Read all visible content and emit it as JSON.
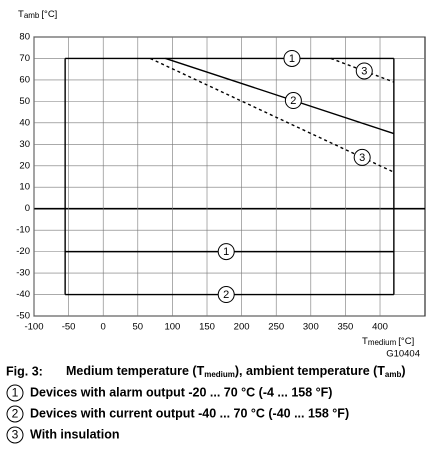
{
  "chart_data": {
    "type": "line",
    "ylabel": {
      "main": "T",
      "sub": "amb",
      "unit": "[°C]"
    },
    "xlabel": {
      "main": "T",
      "sub": "medium",
      "unit": "[°C]"
    },
    "code": "G10404",
    "xlim": [
      -100,
      465
    ],
    "ylim": [
      -50,
      80
    ],
    "xticks": [
      -100,
      -50,
      0,
      50,
      100,
      150,
      200,
      250,
      300,
      350,
      400
    ],
    "yticks": [
      -50,
      -40,
      -30,
      -20,
      -10,
      0,
      10,
      20,
      30,
      40,
      50,
      60,
      70,
      80
    ],
    "grid": true,
    "series": [
      {
        "label": "1",
        "color": "#000000",
        "dash": false,
        "x": [
          -55,
          420
        ],
        "values": [
          70,
          70
        ]
      },
      {
        "label": "2",
        "color": "#000000",
        "dash": false,
        "x": [
          90,
          420
        ],
        "values": [
          70,
          35
        ]
      },
      {
        "label": "3",
        "color": "#000000",
        "dash": true,
        "x": [
          329,
          420
        ],
        "values": [
          70,
          59
        ]
      },
      {
        "label": "3",
        "color": "#000000",
        "dash": true,
        "x": [
          68,
          420
        ],
        "values": [
          70,
          17
        ]
      },
      {
        "label": "1",
        "color": "#000000",
        "dash": false,
        "x": [
          -55,
          420
        ],
        "values": [
          -20,
          -20
        ]
      },
      {
        "label": "2",
        "color": "#000000",
        "dash": false,
        "x": [
          -55,
          420
        ],
        "values": [
          -40,
          -40
        ]
      },
      {
        "color": "#000000",
        "dash": false,
        "x": [
          -55,
          -55
        ],
        "values": [
          -40,
          70
        ]
      },
      {
        "color": "#000000",
        "dash": false,
        "x": [
          420,
          420
        ],
        "values": [
          -40,
          70
        ]
      }
    ],
    "caption": {
      "fig": "Fig. 3:",
      "p1": "Medium temperature (T",
      "s1": "medium",
      "p2": "), ambient temperature (T",
      "s2": "amb",
      "p3": ")"
    },
    "legend": [
      {
        "num": "1",
        "text": "Devices with alarm output -20 ... 70 °C (-4 ... 158 °F)"
      },
      {
        "num": "2",
        "text": "Devices with current output -40 ... 70 °C (-40 ... 158 °F)"
      },
      {
        "num": "3",
        "text": "With insulation"
      }
    ]
  }
}
